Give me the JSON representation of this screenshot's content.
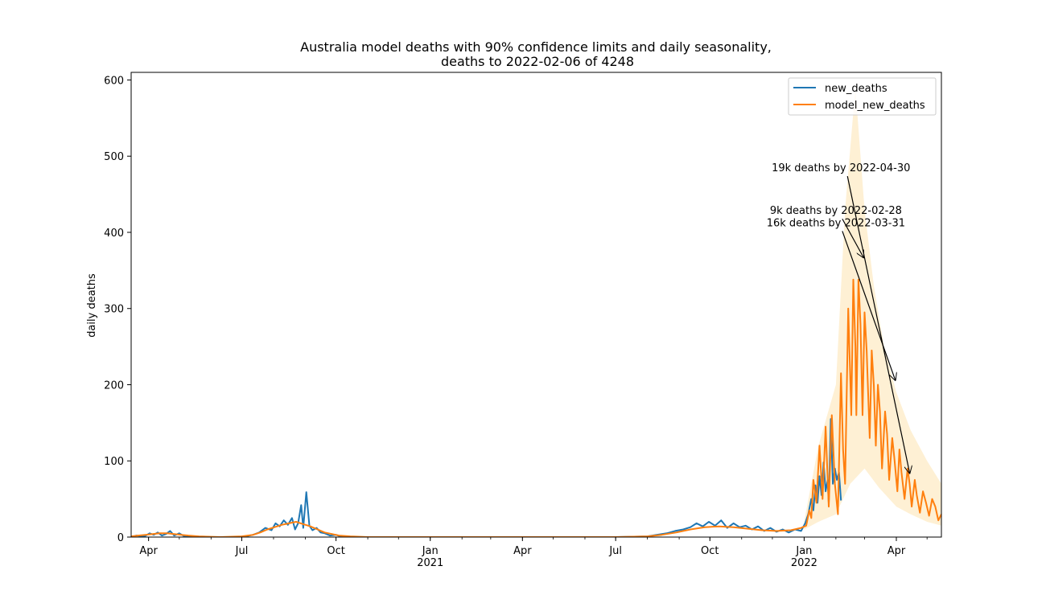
{
  "chart_data": {
    "type": "line",
    "title_line1": "Australia model deaths with 90% confidence limits and daily seasonality,",
    "title_line2": "deaths to 2022-02-06 of 4248",
    "ylabel": "daily deaths",
    "xlabel": "",
    "ylim": [
      0,
      610
    ],
    "xlim": [
      "2020-03-15",
      "2022-05-15"
    ],
    "y_ticks": [
      0,
      100,
      200,
      300,
      400,
      500,
      600
    ],
    "x_ticks": [
      {
        "date": "2020-04-01",
        "label": "Apr",
        "year": ""
      },
      {
        "date": "2020-07-01",
        "label": "Jul",
        "year": ""
      },
      {
        "date": "2020-10-01",
        "label": "Oct",
        "year": ""
      },
      {
        "date": "2021-01-01",
        "label": "Jan",
        "year": "2021"
      },
      {
        "date": "2021-04-01",
        "label": "Apr",
        "year": ""
      },
      {
        "date": "2021-07-01",
        "label": "Jul",
        "year": ""
      },
      {
        "date": "2021-10-01",
        "label": "Oct",
        "year": ""
      },
      {
        "date": "2022-01-01",
        "label": "Jan",
        "year": "2022"
      },
      {
        "date": "2022-04-01",
        "label": "Apr",
        "year": ""
      }
    ],
    "grid": false,
    "legend_position": "top-right",
    "series": [
      {
        "name": "new_deaths",
        "color": "#1f77b4",
        "points": [
          [
            "2020-03-15",
            0
          ],
          [
            "2020-03-20",
            2
          ],
          [
            "2020-03-28",
            1
          ],
          [
            "2020-04-02",
            5
          ],
          [
            "2020-04-06",
            3
          ],
          [
            "2020-04-10",
            6
          ],
          [
            "2020-04-14",
            2
          ],
          [
            "2020-04-18",
            4
          ],
          [
            "2020-04-22",
            8
          ],
          [
            "2020-04-26",
            2
          ],
          [
            "2020-05-01",
            5
          ],
          [
            "2020-05-06",
            1
          ],
          [
            "2020-05-15",
            1
          ],
          [
            "2020-06-01",
            0
          ],
          [
            "2020-06-20",
            0
          ],
          [
            "2020-07-05",
            1
          ],
          [
            "2020-07-12",
            3
          ],
          [
            "2020-07-18",
            6
          ],
          [
            "2020-07-24",
            12
          ],
          [
            "2020-07-30",
            9
          ],
          [
            "2020-08-03",
            18
          ],
          [
            "2020-08-07",
            14
          ],
          [
            "2020-08-11",
            22
          ],
          [
            "2020-08-15",
            16
          ],
          [
            "2020-08-19",
            25
          ],
          [
            "2020-08-22",
            10
          ],
          [
            "2020-08-25",
            18
          ],
          [
            "2020-08-28",
            42
          ],
          [
            "2020-08-30",
            12
          ],
          [
            "2020-09-02",
            59
          ],
          [
            "2020-09-05",
            15
          ],
          [
            "2020-09-08",
            9
          ],
          [
            "2020-09-12",
            12
          ],
          [
            "2020-09-16",
            6
          ],
          [
            "2020-09-20",
            5
          ],
          [
            "2020-09-25",
            2
          ],
          [
            "2020-10-01",
            3
          ],
          [
            "2020-10-05",
            1
          ],
          [
            "2020-10-10",
            1
          ],
          [
            "2020-10-15",
            0
          ],
          [
            "2020-11-01",
            0
          ],
          [
            "2021-01-01",
            0
          ],
          [
            "2021-04-01",
            0
          ],
          [
            "2021-07-01",
            0
          ],
          [
            "2021-08-01",
            1
          ],
          [
            "2021-08-10",
            3
          ],
          [
            "2021-08-20",
            5
          ],
          [
            "2021-08-28",
            8
          ],
          [
            "2021-09-05",
            10
          ],
          [
            "2021-09-12",
            13
          ],
          [
            "2021-09-18",
            18
          ],
          [
            "2021-09-24",
            14
          ],
          [
            "2021-09-30",
            20
          ],
          [
            "2021-10-06",
            15
          ],
          [
            "2021-10-12",
            22
          ],
          [
            "2021-10-18",
            12
          ],
          [
            "2021-10-24",
            18
          ],
          [
            "2021-10-30",
            13
          ],
          [
            "2021-11-05",
            15
          ],
          [
            "2021-11-11",
            10
          ],
          [
            "2021-11-17",
            14
          ],
          [
            "2021-11-23",
            8
          ],
          [
            "2021-11-29",
            12
          ],
          [
            "2021-12-05",
            7
          ],
          [
            "2021-12-11",
            10
          ],
          [
            "2021-12-17",
            6
          ],
          [
            "2021-12-23",
            10
          ],
          [
            "2021-12-29",
            8
          ],
          [
            "2022-01-02",
            18
          ],
          [
            "2022-01-05",
            30
          ],
          [
            "2022-01-08",
            50
          ],
          [
            "2022-01-10",
            35
          ],
          [
            "2022-01-12",
            68
          ],
          [
            "2022-01-14",
            45
          ],
          [
            "2022-01-16",
            80
          ],
          [
            "2022-01-18",
            55
          ],
          [
            "2022-01-20",
            98
          ],
          [
            "2022-01-22",
            60
          ],
          [
            "2022-01-24",
            75
          ],
          [
            "2022-01-25",
            45
          ],
          [
            "2022-01-27",
            155
          ],
          [
            "2022-01-29",
            70
          ],
          [
            "2022-01-31",
            90
          ],
          [
            "2022-02-02",
            75
          ],
          [
            "2022-02-04",
            85
          ],
          [
            "2022-02-06",
            48
          ]
        ]
      },
      {
        "name": "model_new_deaths",
        "color": "#ff7f0e",
        "points": [
          [
            "2020-03-15",
            1
          ],
          [
            "2020-03-22",
            2
          ],
          [
            "2020-03-29",
            3
          ],
          [
            "2020-04-05",
            4
          ],
          [
            "2020-04-12",
            5
          ],
          [
            "2020-04-19",
            5
          ],
          [
            "2020-04-26",
            4
          ],
          [
            "2020-05-03",
            3
          ],
          [
            "2020-05-10",
            2
          ],
          [
            "2020-05-20",
            1
          ],
          [
            "2020-06-10",
            0
          ],
          [
            "2020-07-01",
            1
          ],
          [
            "2020-07-12",
            3
          ],
          [
            "2020-07-19",
            6
          ],
          [
            "2020-07-26",
            10
          ],
          [
            "2020-08-02",
            13
          ],
          [
            "2020-08-09",
            16
          ],
          [
            "2020-08-16",
            18
          ],
          [
            "2020-08-23",
            20
          ],
          [
            "2020-08-30",
            17
          ],
          [
            "2020-09-06",
            14
          ],
          [
            "2020-09-13",
            10
          ],
          [
            "2020-09-20",
            6
          ],
          [
            "2020-09-27",
            4
          ],
          [
            "2020-10-04",
            2
          ],
          [
            "2020-10-15",
            1
          ],
          [
            "2020-11-01",
            0
          ],
          [
            "2021-07-01",
            0
          ],
          [
            "2021-08-01",
            1
          ],
          [
            "2021-08-15",
            3
          ],
          [
            "2021-08-29",
            6
          ],
          [
            "2021-09-12",
            10
          ],
          [
            "2021-09-26",
            13
          ],
          [
            "2021-10-10",
            14
          ],
          [
            "2021-10-24",
            13
          ],
          [
            "2021-11-07",
            11
          ],
          [
            "2021-11-21",
            9
          ],
          [
            "2021-12-05",
            8
          ],
          [
            "2021-12-19",
            9
          ],
          [
            "2021-12-29",
            12
          ],
          [
            "2022-01-03",
            15
          ],
          [
            "2022-01-06",
            35
          ],
          [
            "2022-01-08",
            25
          ],
          [
            "2022-01-10",
            75
          ],
          [
            "2022-01-13",
            45
          ],
          [
            "2022-01-16",
            120
          ],
          [
            "2022-01-19",
            50
          ],
          [
            "2022-01-22",
            145
          ],
          [
            "2022-01-25",
            40
          ],
          [
            "2022-01-28",
            160
          ],
          [
            "2022-01-31",
            70
          ],
          [
            "2022-02-03",
            30
          ],
          [
            "2022-02-06",
            215
          ],
          [
            "2022-02-08",
            115
          ],
          [
            "2022-02-10",
            70
          ],
          [
            "2022-02-13",
            300
          ],
          [
            "2022-02-15",
            210
          ],
          [
            "2022-02-16",
            160
          ],
          [
            "2022-02-18",
            338
          ],
          [
            "2022-02-20",
            250
          ],
          [
            "2022-02-21",
            160
          ],
          [
            "2022-02-23",
            338
          ],
          [
            "2022-02-25",
            280
          ],
          [
            "2022-02-27",
            160
          ],
          [
            "2022-03-01",
            295
          ],
          [
            "2022-03-03",
            245
          ],
          [
            "2022-03-06",
            130
          ],
          [
            "2022-03-08",
            245
          ],
          [
            "2022-03-10",
            200
          ],
          [
            "2022-03-12",
            120
          ],
          [
            "2022-03-14",
            200
          ],
          [
            "2022-03-16",
            165
          ],
          [
            "2022-03-18",
            90
          ],
          [
            "2022-03-21",
            165
          ],
          [
            "2022-03-23",
            135
          ],
          [
            "2022-03-25",
            75
          ],
          [
            "2022-03-28",
            130
          ],
          [
            "2022-03-30",
            105
          ],
          [
            "2022-04-02",
            60
          ],
          [
            "2022-04-04",
            115
          ],
          [
            "2022-04-06",
            85
          ],
          [
            "2022-04-09",
            50
          ],
          [
            "2022-04-12",
            90
          ],
          [
            "2022-04-14",
            70
          ],
          [
            "2022-04-16",
            40
          ],
          [
            "2022-04-19",
            75
          ],
          [
            "2022-04-21",
            55
          ],
          [
            "2022-04-24",
            32
          ],
          [
            "2022-04-27",
            60
          ],
          [
            "2022-04-30",
            45
          ],
          [
            "2022-05-03",
            28
          ],
          [
            "2022-05-06",
            50
          ],
          [
            "2022-05-09",
            40
          ],
          [
            "2022-05-12",
            22
          ],
          [
            "2022-05-15",
            30
          ]
        ]
      }
    ],
    "confidence_band": {
      "name": "90% confidence limits",
      "color": "#fde6b8",
      "lower": [
        [
          "2022-01-01",
          10
        ],
        [
          "2022-01-15",
          20
        ],
        [
          "2022-02-01",
          30
        ],
        [
          "2022-02-15",
          70
        ],
        [
          "2022-03-01",
          90
        ],
        [
          "2022-03-15",
          65
        ],
        [
          "2022-04-01",
          40
        ],
        [
          "2022-04-15",
          30
        ],
        [
          "2022-05-01",
          20
        ],
        [
          "2022-05-15",
          15
        ]
      ],
      "upper": [
        [
          "2022-01-01",
          20
        ],
        [
          "2022-01-15",
          120
        ],
        [
          "2022-02-01",
          200
        ],
        [
          "2022-02-10",
          430
        ],
        [
          "2022-02-20",
          590
        ],
        [
          "2022-03-01",
          430
        ],
        [
          "2022-03-10",
          330
        ],
        [
          "2022-03-20",
          250
        ],
        [
          "2022-04-01",
          190
        ],
        [
          "2022-04-15",
          140
        ],
        [
          "2022-05-01",
          100
        ],
        [
          "2022-05-15",
          70
        ]
      ]
    },
    "annotations": [
      {
        "text": "19k deaths by 2022-04-30",
        "text_x": "2022-02-06",
        "text_y": 480,
        "arrow_x": "2022-04-14",
        "arrow_y": 84
      },
      {
        "text": "9k deaths by 2022-02-28",
        "text_x": "2022-02-01",
        "text_y": 424,
        "arrow_x": "2022-02-28",
        "arrow_y": 367
      },
      {
        "text": "16k deaths by 2022-03-31",
        "text_x": "2022-02-01",
        "text_y": 408,
        "arrow_x": "2022-03-31",
        "arrow_y": 206
      }
    ]
  }
}
